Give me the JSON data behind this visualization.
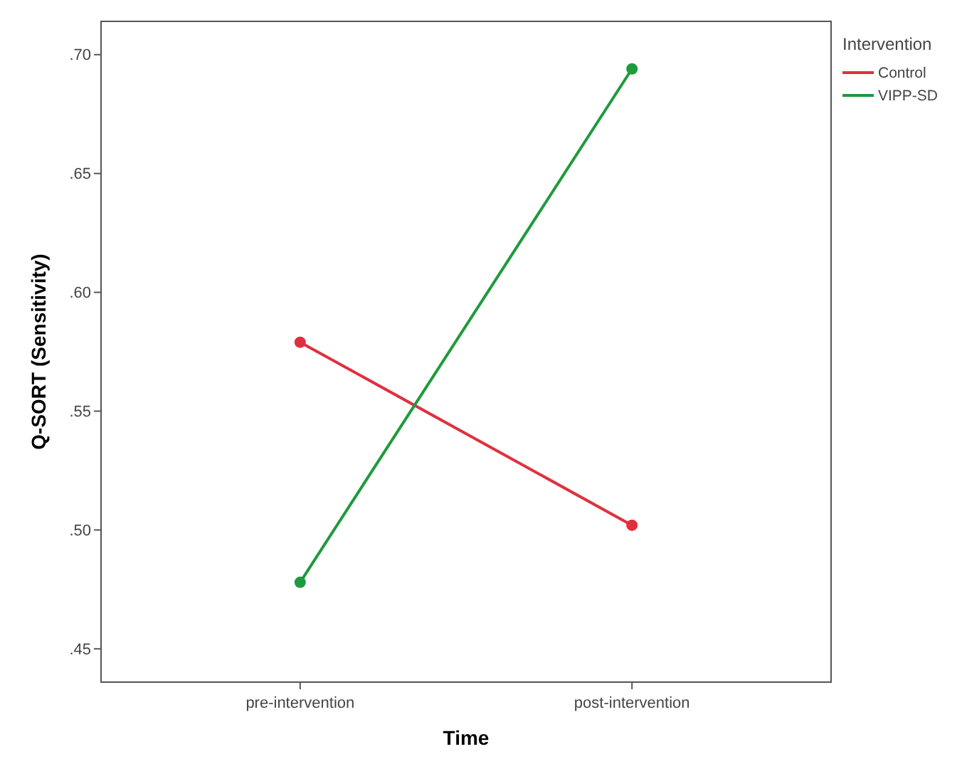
{
  "chart_data": {
    "type": "line",
    "xlabel": "Time",
    "ylabel": "Q-SORT (Sensitivity)",
    "legend_title": "Intervention",
    "categories": [
      "pre-intervention",
      "post-intervention"
    ],
    "series": [
      {
        "name": "Control",
        "color": "#e0303f",
        "values": [
          0.579,
          0.502
        ]
      },
      {
        "name": "VIPP-SD",
        "color": "#1f9a3e",
        "values": [
          0.478,
          0.694
        ]
      }
    ],
    "ylim": [
      0.436,
      0.714
    ],
    "yticks": [
      {
        "value": 0.45,
        "label": ".45"
      },
      {
        "value": 0.5,
        "label": ".50"
      },
      {
        "value": 0.55,
        "label": ".55"
      },
      {
        "value": 0.6,
        "label": ".60"
      },
      {
        "value": 0.65,
        "label": ".65"
      },
      {
        "value": 0.7,
        "label": ".70"
      }
    ],
    "grid": false,
    "legend": "top right",
    "marker": "circle",
    "line_style": "solid"
  }
}
